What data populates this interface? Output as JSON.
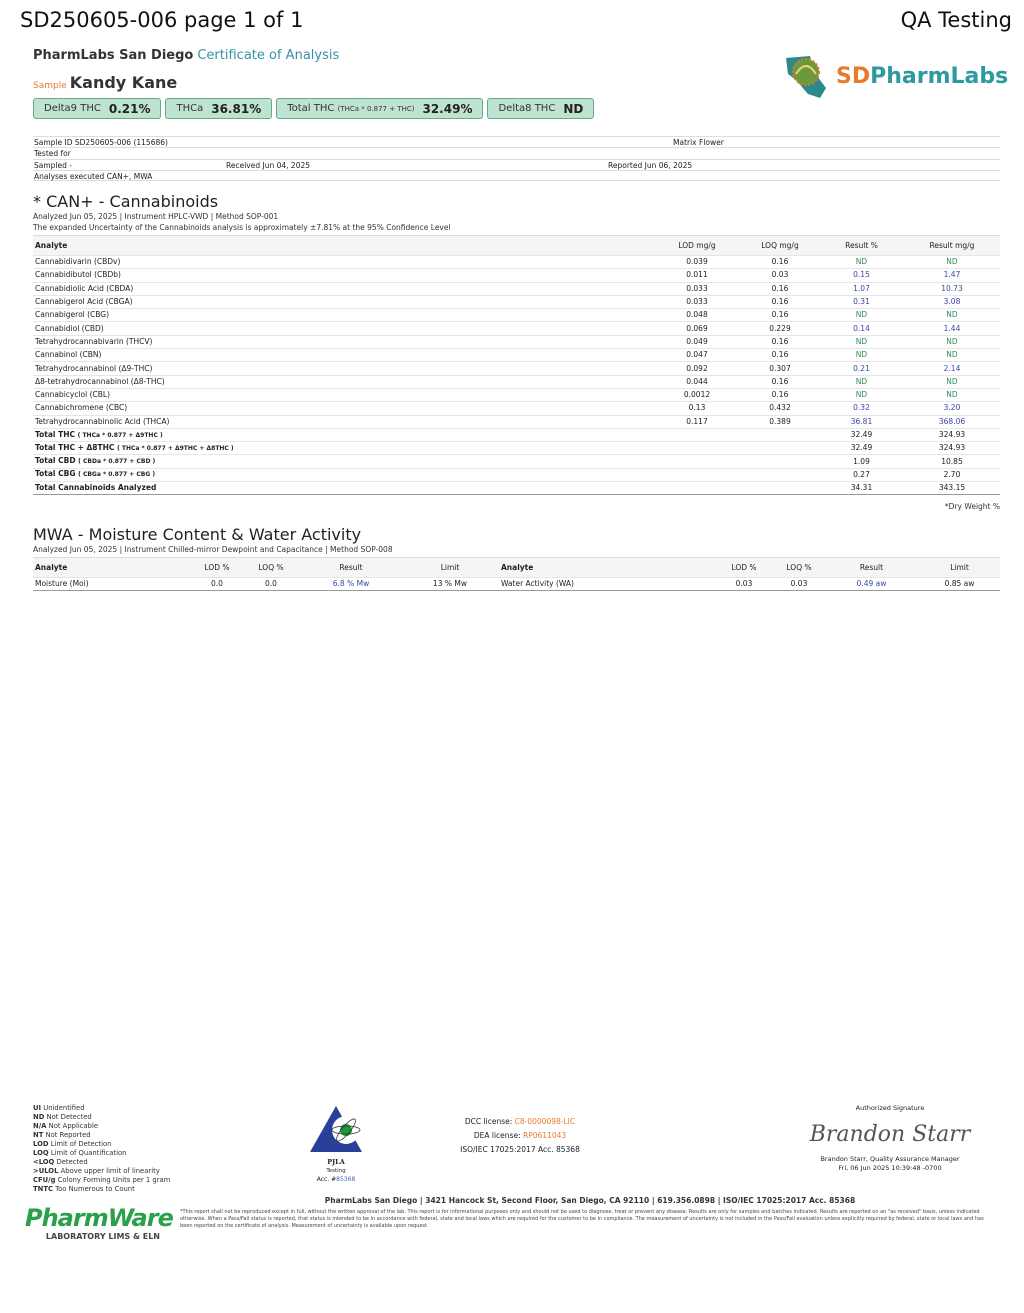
{
  "header": {
    "doc_id": "SD250605-006 page 1 of 1",
    "right": "QA Testing"
  },
  "lab": {
    "name": "PharmLabs San Diego",
    "doc_type": "Certificate of Analysis",
    "logo_text": "SDPharmLabs",
    "logo_arc": "PharmLabs"
  },
  "sample": {
    "label": "Sample",
    "name": "Kandy Kane"
  },
  "badges": [
    {
      "label": "Delta9 THC",
      "formula": "",
      "value": "0.21%"
    },
    {
      "label": "THCa",
      "formula": "",
      "value": "36.81%"
    },
    {
      "label": "Total THC",
      "formula": "(THCa * 0.877 + THC)",
      "value": "32.49%"
    },
    {
      "label": "Delta8 THC",
      "formula": "",
      "value": "ND"
    }
  ],
  "meta": {
    "sample_id_label": "Sample ID",
    "sample_id": "SD250605-006 (115686)",
    "matrix_label": "Matrix",
    "matrix": "Flower",
    "tested_for_label": "Tested for",
    "sampled_label": "Sampled",
    "sampled": "-",
    "received_label": "Received",
    "received": "Jun 04, 2025",
    "reported_label": "Reported",
    "reported": "Jun 06, 2025",
    "analyses_label": "Analyses executed",
    "analyses": "CAN+, MWA"
  },
  "can": {
    "title": "* CAN+ - Cannabinoids",
    "analyzed": "Analyzed Jun 05, 2025",
    "instrument": "Instrument HPLC-VWD",
    "method": "Method SOP-001",
    "uncertainty": "The expanded Uncertainty of the Cannabinoids analysis is approximately ±7.81% at the 95% Confidence Level",
    "headers": [
      "Analyte",
      "LOD mg/g",
      "LOQ mg/g",
      "Result %",
      "Result mg/g"
    ],
    "rows": [
      [
        "Cannabidivarin (CBDv)",
        "0.039",
        "0.16",
        "ND",
        "ND"
      ],
      [
        "Cannabidibutol (CBDb)",
        "0.011",
        "0.03",
        "0.15",
        "1.47"
      ],
      [
        "Cannabidiolic Acid (CBDA)",
        "0.033",
        "0.16",
        "1.07",
        "10.73"
      ],
      [
        "Cannabigerol Acid (CBGA)",
        "0.033",
        "0.16",
        "0.31",
        "3.08"
      ],
      [
        "Cannabigerol (CBG)",
        "0.048",
        "0.16",
        "ND",
        "ND"
      ],
      [
        "Cannabidiol (CBD)",
        "0.069",
        "0.229",
        "0.14",
        "1.44"
      ],
      [
        "Tetrahydrocannabivarin (THCV)",
        "0.049",
        "0.16",
        "ND",
        "ND"
      ],
      [
        "Cannabinol (CBN)",
        "0.047",
        "0.16",
        "ND",
        "ND"
      ],
      [
        "Tetrahydrocannabinol (Δ9-THC)",
        "0.092",
        "0.307",
        "0.21",
        "2.14"
      ],
      [
        "Δ8-tetrahydrocannabinol (Δ8-THC)",
        "0.044",
        "0.16",
        "ND",
        "ND"
      ],
      [
        "Cannabicyclol (CBL)",
        "0.0012",
        "0.16",
        "ND",
        "ND"
      ],
      [
        "Cannabichromene (CBC)",
        "0.13",
        "0.432",
        "0.32",
        "3.20"
      ],
      [
        "Tetrahydrocannabinolic Acid (THCA)",
        "0.117",
        "0.389",
        "36.81",
        "368.06"
      ]
    ],
    "totals": [
      [
        "Total THC",
        "( THCa * 0.877 + Δ9THC )",
        "32.49",
        "324.93"
      ],
      [
        "Total THC + Δ8THC",
        "( THCa * 0.877 + Δ9THC + Δ8THC )",
        "32.49",
        "324.93"
      ],
      [
        "Total CBD",
        "( CBDa * 0.877 + CBD )",
        "1.09",
        "10.85"
      ],
      [
        "Total CBG",
        "( CBGa * 0.877 + CBG )",
        "0.27",
        "2.70"
      ],
      [
        "Total Cannabinoids Analyzed",
        "",
        "34.31",
        "343.15"
      ]
    ],
    "note": "*Dry Weight %"
  },
  "mwa": {
    "title": "MWA - Moisture Content & Water Activity",
    "analyzed": "Analyzed Jun 05, 2025",
    "instrument": "Instrument Chilled-mirror Dewpoint and Capacitance",
    "method": "Method SOP-008",
    "headers": [
      "Analyte",
      "LOD %",
      "LOQ %",
      "Result",
      "Limit",
      "Analyte",
      "LOD %",
      "LOQ %",
      "Result",
      "Limit"
    ],
    "row": [
      "Moisture (Moi)",
      "0.0",
      "0.0",
      "6.8 % Mw",
      "13 % Mw",
      "Water Activity (WA)",
      "0.03",
      "0.03",
      "0.49 aw",
      "0.85 aw"
    ]
  },
  "legend": [
    [
      "UI",
      "Unidentified"
    ],
    [
      "ND",
      "Not Detected"
    ],
    [
      "N/A",
      "Not Applicable"
    ],
    [
      "NT",
      "Not Reported"
    ],
    [
      "LOD",
      "Limit of Detection"
    ],
    [
      "LOQ",
      "Limit of Quantification"
    ],
    [
      "<LOQ",
      "Detected"
    ],
    [
      ">ULOL",
      "Above upper limit of linearity"
    ],
    [
      "CFU/g",
      "Colony Forming Units per 1 gram"
    ],
    [
      "TNTC",
      "Too Numerous to Count"
    ]
  ],
  "pjla": {
    "name": "PJLA",
    "sub": "Testing",
    "acc_label": "Acc. #",
    "acc": "85368"
  },
  "licenses": {
    "dcc_label": "DCC license:",
    "dcc": "C8-0000098-LIC",
    "dea_label": "DEA license:",
    "dea": "RP0611043",
    "iso": "ISO/IEC 17025:2017 Acc. 85368"
  },
  "signature": {
    "label": "Authorized Signature",
    "script": "Brandon Starr",
    "name": "Brandon Starr, Quality Assurance Manager",
    "date": "Fri, 06 Jun 2025 10:39:48 -0700"
  },
  "footer": {
    "address": "PharmLabs San Diego | 3421 Hancock St, Second Floor, San Diego, CA 92110 | 619.356.0898 | ISO/IEC 17025:2017 Acc. 85368",
    "disclaimer": "*This report shall not be reproduced except in full, without the written approval of the lab. This report is for informational purposes only and should not be used to diagnose, treat or prevent any disease. Results are only for samples and batches indicated. Results are reported on an \"as received\" basis, unless indicated otherwise. When a Pass/Fail status is reported, that status is intended to be in accordance with federal, state and local laws which are required for the customer to be in compliance. The measurement of uncertainty is not included in the Pass/Fail evaluation unless explicitly required by federal, state or local laws and has been reported on the certificate of analysis. Measurement of uncertainty is available upon request.",
    "pharmware": "PharmWare",
    "pharmware_sub": "LABORATORY LIMS & ELN"
  },
  "colors": {
    "accent": "#3a8fa8",
    "orange": "#e87a2c",
    "badge": "#bfe3d1",
    "nd": "#2e8b57",
    "value": "#3b46a8"
  }
}
